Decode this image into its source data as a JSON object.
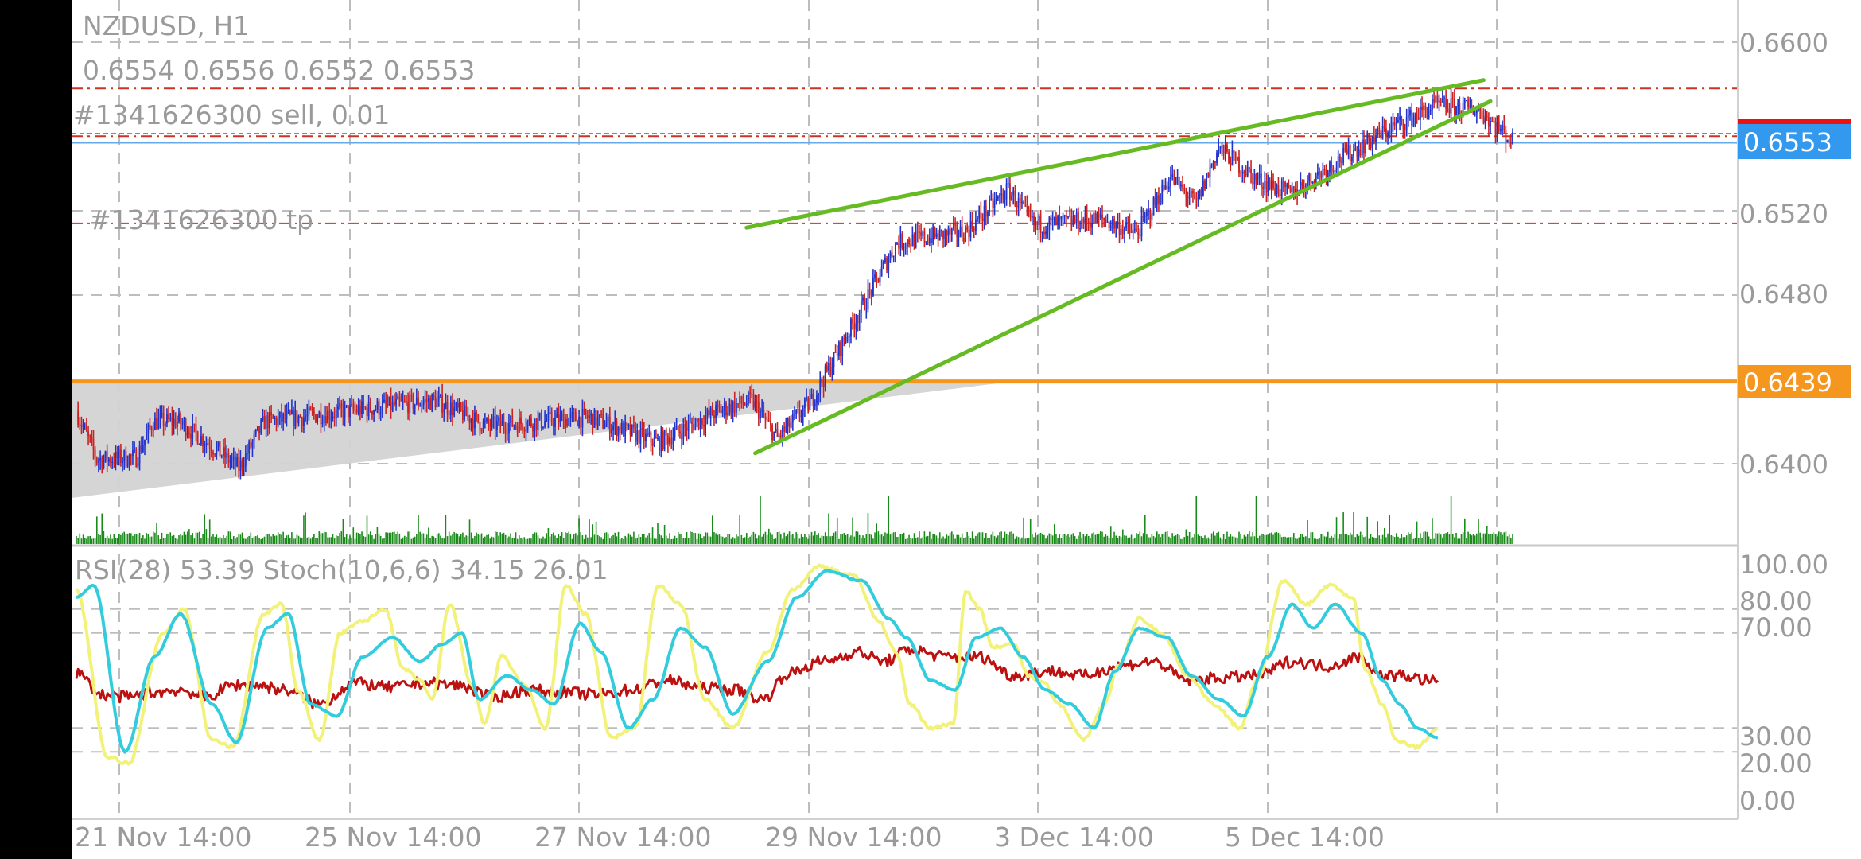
{
  "header": {
    "symbol_timeframe": "NZDUSD, H1",
    "ohlc": "0.6554 0.6556 0.6552 0.6553"
  },
  "orders": {
    "sell_label": "#1341626300 sell, 0.01",
    "tp_label": "#1341626300 tp"
  },
  "price_axis": {
    "ticks": [
      "0.6600",
      "0.6520",
      "0.6480",
      "0.6400"
    ],
    "tick_values": [
      0.66,
      0.652,
      0.648,
      0.64
    ],
    "current_price": "0.6553",
    "level_price": "0.6439"
  },
  "indicator": {
    "title": "RSI(28) 53.39 Stoch(10,6,6) 34.15 26.01",
    "ticks": [
      "100.00",
      "80.00",
      "70.00",
      "30.00",
      "20.00",
      "0.00"
    ]
  },
  "time_axis": {
    "labels": [
      "21 Nov 14:00",
      "25 Nov 14:00",
      "27 Nov 14:00",
      "29 Nov 14:00",
      "3 Dec 14:00",
      "5 Dec 14:00"
    ]
  },
  "colors": {
    "bull_candle": "#2233cc",
    "bear_candle": "#cc2222",
    "trend_line": "#66bb22",
    "level_line": "#f5961e",
    "current_price_bg": "#3399ee",
    "order_line": "#cc3322",
    "rsi": "#bb1111",
    "stoch_main": "#f2f27a",
    "stoch_signal": "#33ccdd",
    "volume": "#1a8a1a",
    "channel_fill": "#d3d3d3"
  },
  "chart_data": {
    "type": "candlestick",
    "symbol": "NZDUSD",
    "timeframe": "H1",
    "ylim": [
      0.6385,
      0.6612
    ],
    "x_ticks": [
      "21 Nov 14:00",
      "25 Nov 14:00",
      "27 Nov 14:00",
      "29 Nov 14:00",
      "3 Dec 14:00",
      "5 Dec 14:00"
    ],
    "current_price": 0.6553,
    "horizontal_levels": [
      0.6439
    ],
    "order_lines": {
      "sell": 0.6555,
      "tp": 0.6514,
      "upper": 0.6578
    },
    "close_path": [
      {
        "i": 0,
        "p": 0.6425
      },
      {
        "i": 12,
        "p": 0.6402
      },
      {
        "i": 35,
        "p": 0.6403
      },
      {
        "i": 45,
        "p": 0.642
      },
      {
        "i": 60,
        "p": 0.642
      },
      {
        "i": 80,
        "p": 0.6408
      },
      {
        "i": 95,
        "p": 0.6398
      },
      {
        "i": 110,
        "p": 0.642
      },
      {
        "i": 160,
        "p": 0.6425
      },
      {
        "i": 210,
        "p": 0.643
      },
      {
        "i": 240,
        "p": 0.6418
      },
      {
        "i": 300,
        "p": 0.6422
      },
      {
        "i": 340,
        "p": 0.641
      },
      {
        "i": 375,
        "p": 0.6425
      },
      {
        "i": 395,
        "p": 0.643
      },
      {
        "i": 410,
        "p": 0.6412
      },
      {
        "i": 430,
        "p": 0.643
      },
      {
        "i": 460,
        "p": 0.6475
      },
      {
        "i": 480,
        "p": 0.6505
      },
      {
        "i": 520,
        "p": 0.651
      },
      {
        "i": 545,
        "p": 0.653
      },
      {
        "i": 560,
        "p": 0.6513
      },
      {
        "i": 600,
        "p": 0.6516
      },
      {
        "i": 620,
        "p": 0.6509
      },
      {
        "i": 640,
        "p": 0.6536
      },
      {
        "i": 655,
        "p": 0.6523
      },
      {
        "i": 668,
        "p": 0.655
      },
      {
        "i": 690,
        "p": 0.6535
      },
      {
        "i": 710,
        "p": 0.6528
      },
      {
        "i": 740,
        "p": 0.6545
      },
      {
        "i": 770,
        "p": 0.656
      },
      {
        "i": 795,
        "p": 0.657
      },
      {
        "i": 820,
        "p": 0.6568
      },
      {
        "i": 840,
        "p": 0.6553
      }
    ],
    "trendlines": [
      {
        "from": {
          "i": 392,
          "p": 0.6512
        },
        "to": {
          "i": 823,
          "p": 0.6582
        }
      },
      {
        "from": {
          "i": 397,
          "p": 0.6405
        },
        "to": {
          "i": 827,
          "p": 0.6572
        }
      }
    ],
    "indicator_ylim": [
      0,
      100
    ],
    "indicator_levels": [
      80,
      70,
      30,
      20
    ],
    "rsi_28": 53.39,
    "stoch_10_6_6": {
      "main": 34.15,
      "signal": 26.01
    }
  }
}
